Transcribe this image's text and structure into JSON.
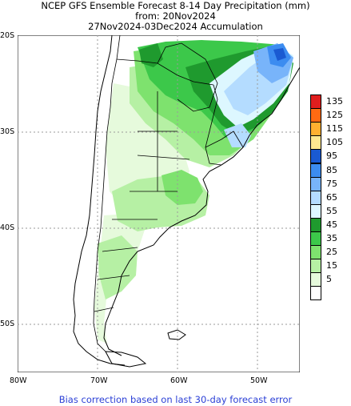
{
  "titles": {
    "line1": "NCEP GFS Ensemble Forecast 8-14 Day Precipitation (mm)",
    "line2": "from: 20Nov2024",
    "line3": "27Nov2024-03Dec2024 Accumulation"
  },
  "axes": {
    "lat_labels": [
      "20S",
      "30S",
      "40S",
      "50S"
    ],
    "lon_labels": [
      "80W",
      "70W",
      "60W",
      "50W"
    ]
  },
  "legend": {
    "levels": [
      {
        "label": "135",
        "color": "#e01e1e"
      },
      {
        "label": "125",
        "color": "#ff6a12"
      },
      {
        "label": "115",
        "color": "#ffb030"
      },
      {
        "label": "105",
        "color": "#ffe890"
      },
      {
        "label": "95",
        "color": "#1a5ad2"
      },
      {
        "label": "85",
        "color": "#3c8cf0"
      },
      {
        "label": "75",
        "color": "#78b4fa"
      },
      {
        "label": "65",
        "color": "#b4dcff"
      },
      {
        "label": "55",
        "color": "#ddf7ff"
      },
      {
        "label": "45",
        "color": "#1f9a2e"
      },
      {
        "label": "35",
        "color": "#3cc84a"
      },
      {
        "label": "25",
        "color": "#7ee26e"
      },
      {
        "label": "15",
        "color": "#b6f0a4"
      },
      {
        "label": "5",
        "color": "#e6fadc"
      },
      {
        "label": "",
        "color": "#ffffff"
      }
    ]
  },
  "footer": "Bias correction based on last 30-day forecast error",
  "colors": {
    "ocean": "#ffffff",
    "land": "#ffffff",
    "coast": "#000000",
    "grid": "#9a9a9a",
    "footer_text": "#2a3fd6"
  }
}
